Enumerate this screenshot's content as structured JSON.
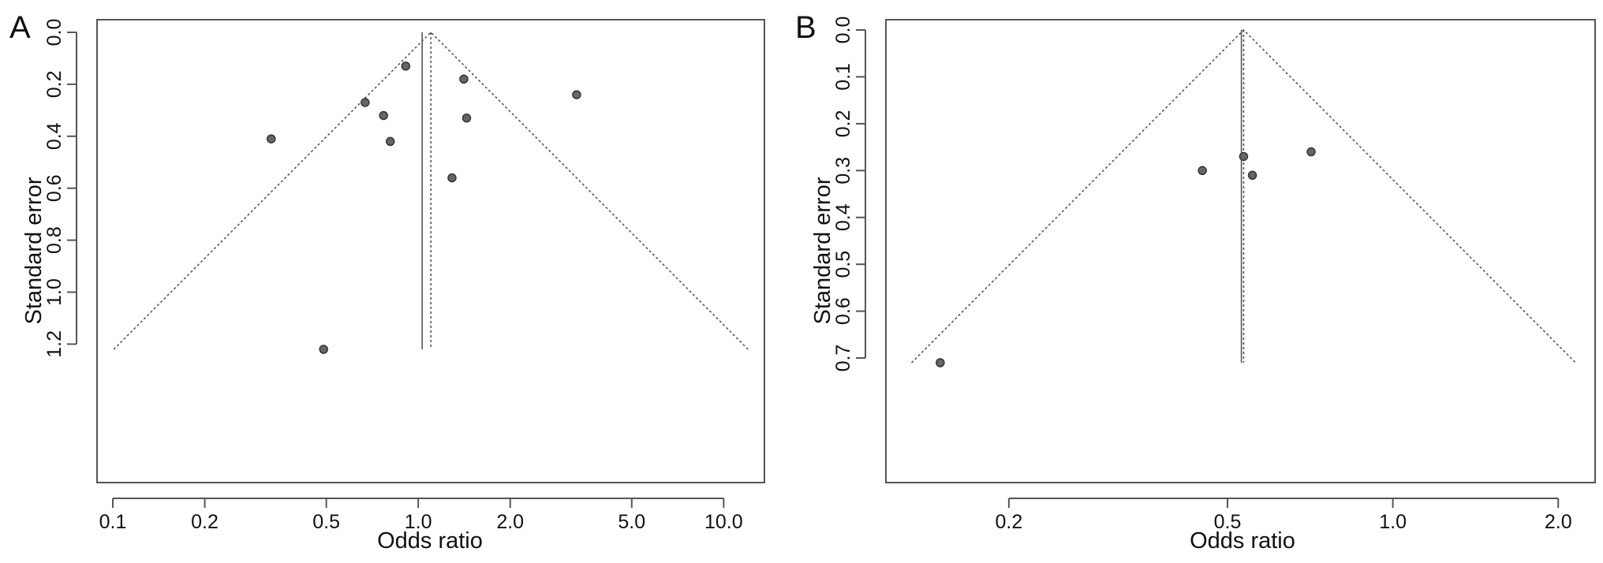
{
  "chart_data": [
    {
      "type": "scatter",
      "panel_label": "A",
      "title": "",
      "xlabel": "Odds ratio",
      "ylabel": "Standard error",
      "x_scale": "log",
      "y_reversed": true,
      "xlim": [
        0.1,
        12
      ],
      "ylim": [
        0,
        1.22
      ],
      "x_ticks": [
        0.1,
        0.2,
        0.5,
        1.0,
        2.0,
        5.0,
        10.0
      ],
      "x_tick_labels": [
        "0.1",
        "0.2",
        "0.5",
        "1.0",
        "2.0",
        "5.0",
        "10.0"
      ],
      "y_ticks": [
        0,
        0.2,
        0.4,
        0.6,
        0.8,
        1.0,
        1.2
      ],
      "y_tick_labels": [
        "0.0",
        "0.2",
        "0.4",
        "0.6",
        "0.8",
        "1.0",
        "1.2"
      ],
      "summary_or": 1.1,
      "fixed_line_or": 1.03,
      "funnel_se_max": 1.22,
      "points": [
        {
          "or": 0.91,
          "se": 0.13
        },
        {
          "or": 0.67,
          "se": 0.27
        },
        {
          "or": 0.77,
          "se": 0.32
        },
        {
          "or": 0.33,
          "se": 0.41
        },
        {
          "or": 0.81,
          "se": 0.42
        },
        {
          "or": 1.41,
          "se": 0.18
        },
        {
          "or": 1.44,
          "se": 0.33
        },
        {
          "or": 3.3,
          "se": 0.24
        },
        {
          "or": 1.29,
          "se": 0.56
        },
        {
          "or": 0.49,
          "se": 1.22
        }
      ]
    },
    {
      "type": "scatter",
      "panel_label": "B",
      "title": "",
      "xlabel": "Odds ratio",
      "ylabel": "Standard error",
      "x_scale": "log",
      "y_reversed": true,
      "xlim": [
        0.135,
        2.1
      ],
      "ylim": [
        0,
        0.71
      ],
      "x_ticks": [
        0.2,
        0.5,
        1.0,
        2.0
      ],
      "x_tick_labels": [
        "0.2",
        "0.5",
        "1.0",
        "2.0"
      ],
      "y_ticks": [
        0,
        0.1,
        0.2,
        0.3,
        0.4,
        0.5,
        0.6,
        0.7
      ],
      "y_tick_labels": [
        "0.0",
        "0.1",
        "0.2",
        "0.3",
        "0.4",
        "0.5",
        "0.6",
        "0.7"
      ],
      "summary_or": 0.535,
      "fixed_line_or": 0.53,
      "funnel_se_max": 0.71,
      "points": [
        {
          "or": 0.535,
          "se": 0.27
        },
        {
          "or": 0.45,
          "se": 0.3
        },
        {
          "or": 0.555,
          "se": 0.31
        },
        {
          "or": 0.71,
          "se": 0.26
        },
        {
          "or": 0.15,
          "se": 0.71
        }
      ]
    }
  ]
}
